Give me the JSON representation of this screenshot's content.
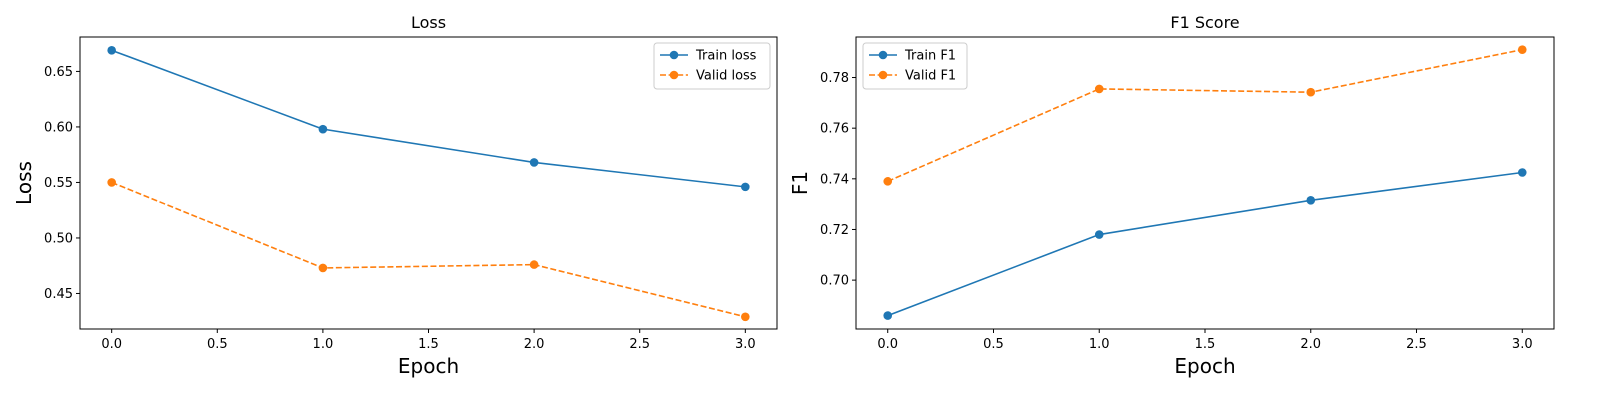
{
  "chart_data": [
    {
      "type": "line",
      "title": "Loss",
      "xlabel": "Epoch",
      "ylabel": "Loss",
      "x": [
        0,
        1,
        2,
        3
      ],
      "xlim": [
        -0.15,
        3.15
      ],
      "ylim": [
        0.418,
        0.681
      ],
      "xticks": [
        0.0,
        0.5,
        1.0,
        1.5,
        2.0,
        2.5,
        3.0
      ],
      "xtick_labels": [
        "0.0",
        "0.5",
        "1.0",
        "1.5",
        "2.0",
        "2.5",
        "3.0"
      ],
      "yticks": [
        0.45,
        0.5,
        0.55,
        0.6,
        0.65
      ],
      "ytick_labels": [
        "0.45",
        "0.50",
        "0.55",
        "0.60",
        "0.65"
      ],
      "grid": false,
      "legend": "upper right",
      "series": [
        {
          "name": "Train loss",
          "values": [
            0.669,
            0.598,
            0.568,
            0.546
          ],
          "color": "#1f77b4",
          "dashed": false
        },
        {
          "name": "Valid loss",
          "values": [
            0.55,
            0.473,
            0.476,
            0.429
          ],
          "color": "#ff7f0e",
          "dashed": true
        }
      ]
    },
    {
      "type": "line",
      "title": "F1 Score",
      "xlabel": "Epoch",
      "ylabel": "F1",
      "x": [
        0,
        1,
        2,
        3
      ],
      "xlim": [
        -0.15,
        3.15
      ],
      "ylim": [
        0.6807,
        0.796
      ],
      "xticks": [
        0.0,
        0.5,
        1.0,
        1.5,
        2.0,
        2.5,
        3.0
      ],
      "xtick_labels": [
        "0.0",
        "0.5",
        "1.0",
        "1.5",
        "2.0",
        "2.5",
        "3.0"
      ],
      "yticks": [
        0.7,
        0.72,
        0.74,
        0.76,
        0.78
      ],
      "ytick_labels": [
        "0.70",
        "0.72",
        "0.74",
        "0.76",
        "0.78"
      ],
      "grid": false,
      "legend": "upper left",
      "series": [
        {
          "name": "Train F1",
          "values": [
            0.686,
            0.718,
            0.7315,
            0.7425
          ],
          "color": "#1f77b4",
          "dashed": false
        },
        {
          "name": "Valid F1",
          "values": [
            0.739,
            0.7755,
            0.7742,
            0.791
          ],
          "color": "#ff7f0e",
          "dashed": true
        }
      ]
    }
  ]
}
